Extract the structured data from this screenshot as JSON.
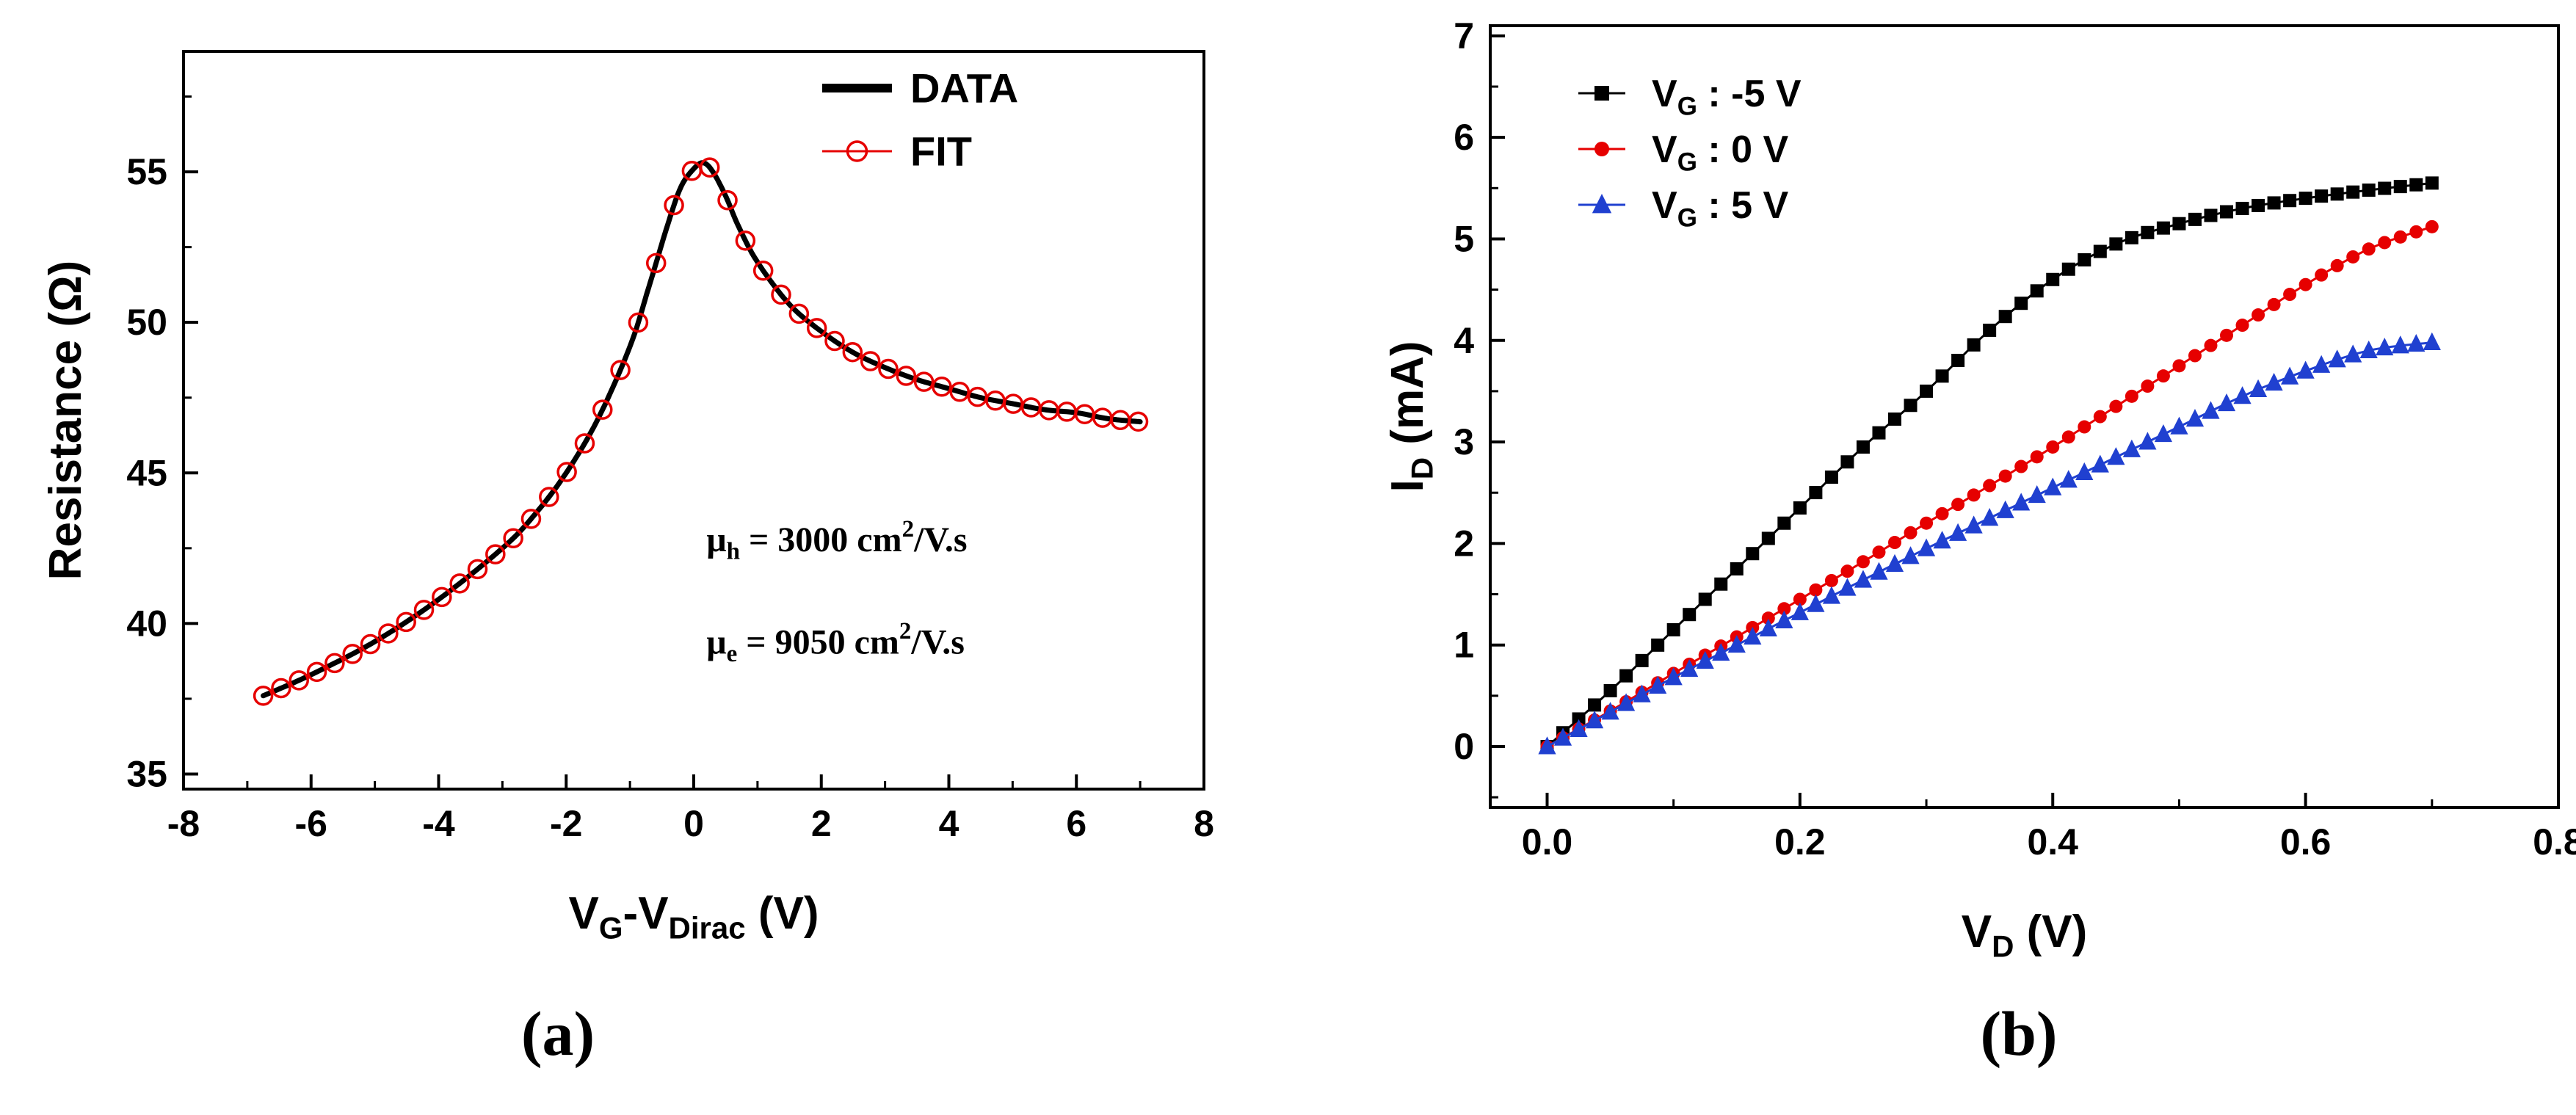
{
  "figure": {
    "panel_labels": {
      "a": "(a)",
      "b": "(b)"
    }
  },
  "colors": {
    "data_black": "#000000",
    "fit_red": "#e60000",
    "series_red": "#e60000",
    "series_blue": "#2040d0"
  },
  "chart_data": [
    {
      "id": "panel-a",
      "type": "line",
      "title": "",
      "xlabel_text": "VG-VDirac (V)",
      "xlabel_parts": [
        {
          "t": "V"
        },
        {
          "t": "G",
          "sub": true
        },
        {
          "t": "-V"
        },
        {
          "t": "Dirac",
          "sub": true
        },
        {
          "t": " (V)"
        }
      ],
      "ylabel_text": "Resistance (Ω)",
      "ylabel_parts": [
        {
          "t": "Resistance (Ω)"
        }
      ],
      "xlim": [
        -8,
        8
      ],
      "ylim": [
        34.5,
        59
      ],
      "xticks": {
        "values": [
          -8,
          -6,
          -4,
          -2,
          0,
          2,
          4,
          6,
          8
        ],
        "labels": [
          "-8",
          "-6",
          "-4",
          "-2",
          "0",
          "2",
          "4",
          "6",
          "8"
        ]
      },
      "yticks": {
        "values": [
          35,
          40,
          45,
          50,
          55
        ],
        "labels": [
          "35",
          "40",
          "45",
          "50",
          "55"
        ]
      },
      "x_minor_step": 1,
      "y_minor_step": 2.5,
      "grid": false,
      "legend_position": "top-right-inside",
      "series": [
        {
          "name": "DATA",
          "label_parts": [
            {
              "t": "DATA"
            }
          ],
          "mode": "line",
          "color": "#000000",
          "line_width": 7,
          "points": [
            [
              -6.75,
              37.6
            ],
            [
              -6,
              38.3
            ],
            [
              -5,
              39.4
            ],
            [
              -4,
              40.8
            ],
            [
              -3,
              42.5
            ],
            [
              -2.5,
              43.6
            ],
            [
              -2,
              45.0
            ],
            [
              -1.5,
              46.8
            ],
            [
              -1,
              49.2
            ],
            [
              -0.7,
              51.2
            ],
            [
              -0.4,
              53.3
            ],
            [
              -0.2,
              54.5
            ],
            [
              0,
              55.1
            ],
            [
              0.15,
              55.3
            ],
            [
              0.3,
              55.0
            ],
            [
              0.5,
              54.2
            ],
            [
              0.7,
              53.2
            ],
            [
              1,
              52.0
            ],
            [
              1.5,
              50.6
            ],
            [
              2,
              49.7
            ],
            [
              2.5,
              49.0
            ],
            [
              3,
              48.5
            ],
            [
              3.5,
              48.1
            ],
            [
              4,
              47.8
            ],
            [
              4.5,
              47.5
            ],
            [
              5,
              47.3
            ],
            [
              5.5,
              47.1
            ],
            [
              6,
              47.0
            ],
            [
              6.5,
              46.8
            ],
            [
              7,
              46.7
            ]
          ]
        },
        {
          "name": "FIT",
          "label_parts": [
            {
              "t": "FIT"
            }
          ],
          "mode": "markers",
          "marker": "open-circle",
          "color": "#e60000",
          "marker_step": 0.28,
          "marker_size": 12,
          "points": [
            [
              -6.75,
              37.6
            ],
            [
              -6,
              38.3
            ],
            [
              -5,
              39.4
            ],
            [
              -4,
              40.8
            ],
            [
              -3,
              42.5
            ],
            [
              -2.5,
              43.6
            ],
            [
              -2,
              45.0
            ],
            [
              -1.5,
              46.8
            ],
            [
              -1,
              49.2
            ],
            [
              -0.7,
              51.2
            ],
            [
              -0.4,
              53.3
            ],
            [
              -0.2,
              54.5
            ],
            [
              0,
              55.1
            ],
            [
              0.15,
              55.3
            ],
            [
              0.3,
              55.0
            ],
            [
              0.5,
              54.2
            ],
            [
              0.7,
              53.2
            ],
            [
              1,
              52.0
            ],
            [
              1.5,
              50.6
            ],
            [
              2,
              49.7
            ],
            [
              2.5,
              49.0
            ],
            [
              3,
              48.5
            ],
            [
              3.5,
              48.1
            ],
            [
              4,
              47.8
            ],
            [
              4.5,
              47.5
            ],
            [
              5,
              47.3
            ],
            [
              5.5,
              47.1
            ],
            [
              6,
              47.0
            ],
            [
              6.5,
              46.8
            ],
            [
              7,
              46.7
            ]
          ]
        }
      ],
      "annotations": [
        {
          "x": 0.2,
          "y": 42.4,
          "text": "μh = 3000 cm2/V.s",
          "parts": [
            {
              "t": "μ"
            },
            {
              "t": "h",
              "sub": true
            },
            {
              "t": " = 3000 cm"
            },
            {
              "t": "2",
              "sup": true
            },
            {
              "t": "/V.s"
            }
          ]
        },
        {
          "x": 0.2,
          "y": 39.0,
          "text": "μe = 9050 cm2/V.s",
          "parts": [
            {
              "t": "μ"
            },
            {
              "t": "e",
              "sub": true
            },
            {
              "t": " = 9050 cm"
            },
            {
              "t": "2",
              "sup": true
            },
            {
              "t": "/V.s"
            }
          ]
        }
      ]
    },
    {
      "id": "panel-b",
      "type": "scatter",
      "title": "",
      "xlabel_text": "VD (V)",
      "xlabel_parts": [
        {
          "t": "V"
        },
        {
          "t": "D",
          "sub": true
        },
        {
          "t": " (V)"
        }
      ],
      "ylabel_text": "ID (mA)",
      "ylabel_parts": [
        {
          "t": "I"
        },
        {
          "t": "D",
          "sub": true
        },
        {
          "t": " (mA)"
        }
      ],
      "xlim": [
        -0.045,
        0.8
      ],
      "ylim": [
        -0.6,
        7.1
      ],
      "xticks": {
        "values": [
          0,
          0.2,
          0.4,
          0.6,
          0.8
        ],
        "labels": [
          "0.0",
          "0.2",
          "0.4",
          "0.6",
          "0.8"
        ]
      },
      "yticks": {
        "values": [
          0,
          1,
          2,
          3,
          4,
          5,
          6,
          7
        ],
        "labels": [
          "0",
          "1",
          "2",
          "3",
          "4",
          "5",
          "6",
          "7"
        ]
      },
      "x_minor_step": 0.1,
      "y_minor_step": 0.5,
      "grid": false,
      "legend_position": "top-left-inside",
      "series": [
        {
          "name": "VG : -5 V",
          "label_parts": [
            {
              "t": "V"
            },
            {
              "t": "G",
              "sub": true
            },
            {
              "t": " : -5 V"
            }
          ],
          "mode": "line+markers",
          "marker": "square",
          "color": "#000000",
          "line_width": 3,
          "marker_step": 0.0125,
          "marker_size": 9,
          "points": [
            [
              0,
              0
            ],
            [
              0.05,
              0.55
            ],
            [
              0.1,
              1.15
            ],
            [
              0.15,
              1.75
            ],
            [
              0.2,
              2.35
            ],
            [
              0.25,
              2.95
            ],
            [
              0.3,
              3.5
            ],
            [
              0.35,
              4.1
            ],
            [
              0.4,
              4.6
            ],
            [
              0.45,
              4.95
            ],
            [
              0.5,
              5.15
            ],
            [
              0.55,
              5.3
            ],
            [
              0.6,
              5.4
            ],
            [
              0.65,
              5.48
            ],
            [
              0.7,
              5.55
            ]
          ]
        },
        {
          "name": "VG : 0 V",
          "label_parts": [
            {
              "t": "V"
            },
            {
              "t": "G",
              "sub": true
            },
            {
              "t": " : 0 V"
            }
          ],
          "mode": "line+markers",
          "marker": "circle",
          "color": "#e60000",
          "line_width": 3,
          "marker_step": 0.0125,
          "marker_size": 9,
          "points": [
            [
              0,
              0
            ],
            [
              0.05,
              0.35
            ],
            [
              0.1,
              0.72
            ],
            [
              0.15,
              1.08
            ],
            [
              0.2,
              1.45
            ],
            [
              0.25,
              1.82
            ],
            [
              0.3,
              2.2
            ],
            [
              0.35,
              2.57
            ],
            [
              0.4,
              2.95
            ],
            [
              0.45,
              3.35
            ],
            [
              0.5,
              3.75
            ],
            [
              0.55,
              4.15
            ],
            [
              0.6,
              4.55
            ],
            [
              0.65,
              4.9
            ],
            [
              0.7,
              5.12
            ]
          ]
        },
        {
          "name": "VG : 5 V",
          "label_parts": [
            {
              "t": "V"
            },
            {
              "t": "G",
              "sub": true
            },
            {
              "t": " : 5 V"
            }
          ],
          "mode": "line+markers",
          "marker": "triangle",
          "color": "#2040d0",
          "line_width": 3,
          "marker_step": 0.0125,
          "marker_size": 11,
          "points": [
            [
              0,
              0
            ],
            [
              0.05,
              0.34
            ],
            [
              0.1,
              0.68
            ],
            [
              0.15,
              1.0
            ],
            [
              0.2,
              1.32
            ],
            [
              0.25,
              1.64
            ],
            [
              0.3,
              1.95
            ],
            [
              0.35,
              2.25
            ],
            [
              0.4,
              2.55
            ],
            [
              0.45,
              2.85
            ],
            [
              0.5,
              3.15
            ],
            [
              0.55,
              3.45
            ],
            [
              0.6,
              3.7
            ],
            [
              0.65,
              3.9
            ],
            [
              0.7,
              3.98
            ]
          ]
        }
      ],
      "annotations": []
    }
  ]
}
